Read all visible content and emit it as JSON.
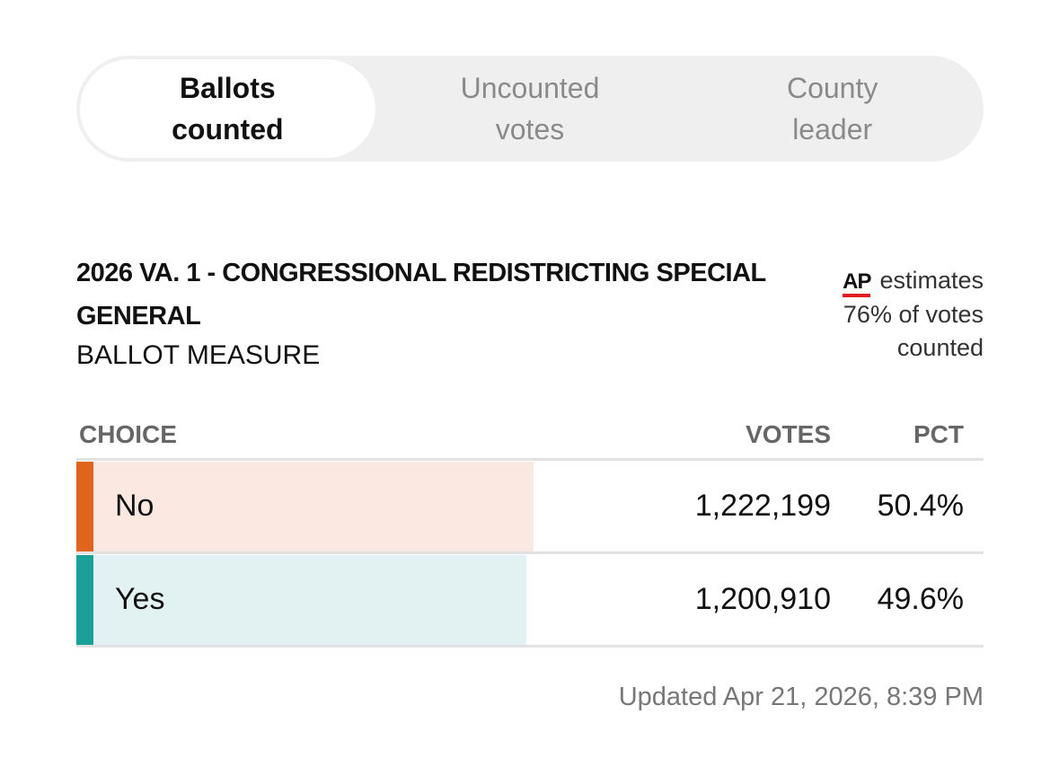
{
  "tabs": [
    {
      "label": "Ballots counted",
      "active": true
    },
    {
      "label": "Uncounted votes",
      "active": false
    },
    {
      "label": "County leader",
      "active": false
    }
  ],
  "header": {
    "title": "2026 VA. 1 - CONGRESSIONAL REDISTRICTING SPECIAL GENERAL",
    "subtitle": "BALLOT MEASURE"
  },
  "estimate": {
    "source": "AP",
    "text": "estimates 76% of votes counted"
  },
  "table": {
    "columns": [
      "CHOICE",
      "VOTES",
      "PCT"
    ],
    "rows": [
      {
        "choice": "No",
        "votes": "1,222,199",
        "pct": {
          "value": 50.4,
          "label": "50.4%"
        },
        "color": "#e0641e",
        "bar_color": "#fbe9e1"
      },
      {
        "choice": "Yes",
        "votes": "1,200,910",
        "pct": {
          "value": 49.6,
          "label": "49.6%"
        },
        "color": "#1a9f99",
        "bar_color": "#e2f2f2"
      }
    ]
  },
  "footer": {
    "updated": "Updated Apr 21, 2026, 8:39 PM"
  }
}
